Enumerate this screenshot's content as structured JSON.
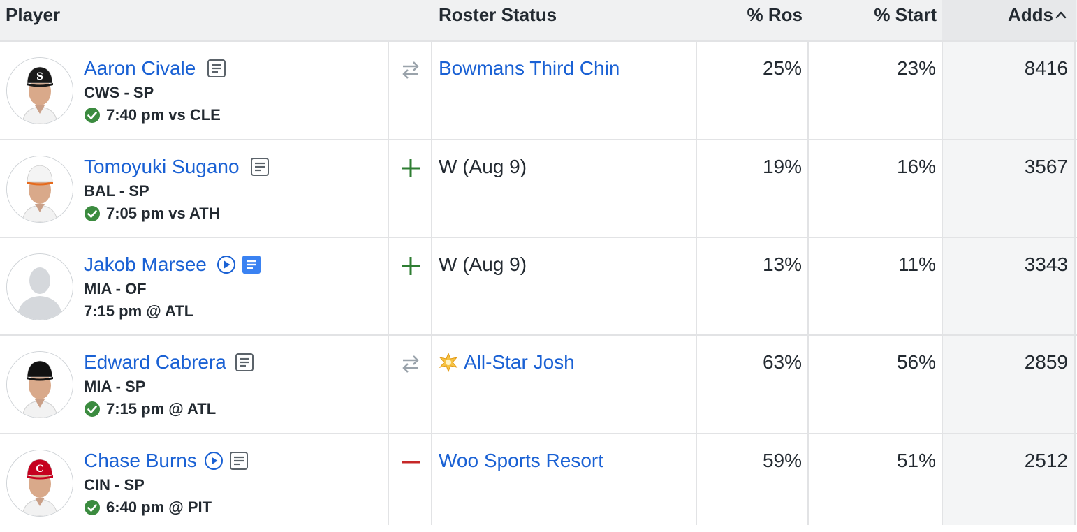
{
  "columns": {
    "player": "Player",
    "roster_status": "Roster Status",
    "pct_ros": "% Ros",
    "pct_start": "% Start",
    "adds": "Adds",
    "sort_icon": "chevron-up-icon"
  },
  "colors": {
    "link": "#1a61d4",
    "check_green": "#3b8b3f",
    "add_green": "#2e7d32",
    "drop_red": "#c62828",
    "trade_gray": "#9aa3ab"
  },
  "players": [
    {
      "name": "Aaron Civale",
      "team_pos": "CWS - SP",
      "game": "7:40 pm vs CLE",
      "game_confirmed": true,
      "has_video": false,
      "note_highlight": false,
      "action_icon": "trade-arrows-icon",
      "roster_status": "Bowmans Third Chin",
      "roster_status_is_team": true,
      "status_badge": "",
      "pct_ros": "25%",
      "pct_start": "23%",
      "adds": "8416",
      "cap_color": "#1a1a1a",
      "cap_logo": "S"
    },
    {
      "name": "Tomoyuki Sugano",
      "team_pos": "BAL - SP",
      "game": "7:05 pm vs ATH",
      "game_confirmed": true,
      "has_video": false,
      "note_highlight": false,
      "action_icon": "plus-icon",
      "roster_status": "W (Aug 9)",
      "roster_status_is_team": false,
      "status_badge": "",
      "pct_ros": "19%",
      "pct_start": "16%",
      "adds": "3567",
      "cap_color": "#f4f4f4",
      "cap_logo": ""
    },
    {
      "name": "Jakob Marsee",
      "team_pos": "MIA - OF",
      "game": "7:15 pm @ ATL",
      "game_confirmed": false,
      "has_video": true,
      "note_highlight": true,
      "action_icon": "plus-icon",
      "roster_status": "W (Aug 9)",
      "roster_status_is_team": false,
      "status_badge": "",
      "pct_ros": "13%",
      "pct_start": "11%",
      "adds": "3343",
      "cap_color": "",
      "cap_logo": ""
    },
    {
      "name": "Edward Cabrera",
      "team_pos": "MIA - SP",
      "game": "7:15 pm @ ATL",
      "game_confirmed": true,
      "has_video": false,
      "note_highlight": false,
      "action_icon": "trade-arrows-icon",
      "roster_status": "All-Star Josh",
      "roster_status_is_team": true,
      "status_badge": "starburst-icon",
      "pct_ros": "63%",
      "pct_start": "56%",
      "adds": "2859",
      "cap_color": "#111111",
      "cap_logo": ""
    },
    {
      "name": "Chase Burns",
      "team_pos": "CIN - SP",
      "game": "6:40 pm @ PIT",
      "game_confirmed": true,
      "has_video": true,
      "note_highlight": false,
      "action_icon": "minus-icon",
      "roster_status": "Woo Sports Resort",
      "roster_status_is_team": true,
      "status_badge": "",
      "pct_ros": "59%",
      "pct_start": "51%",
      "adds": "2512",
      "cap_color": "#c6011f",
      "cap_logo": "C"
    }
  ]
}
